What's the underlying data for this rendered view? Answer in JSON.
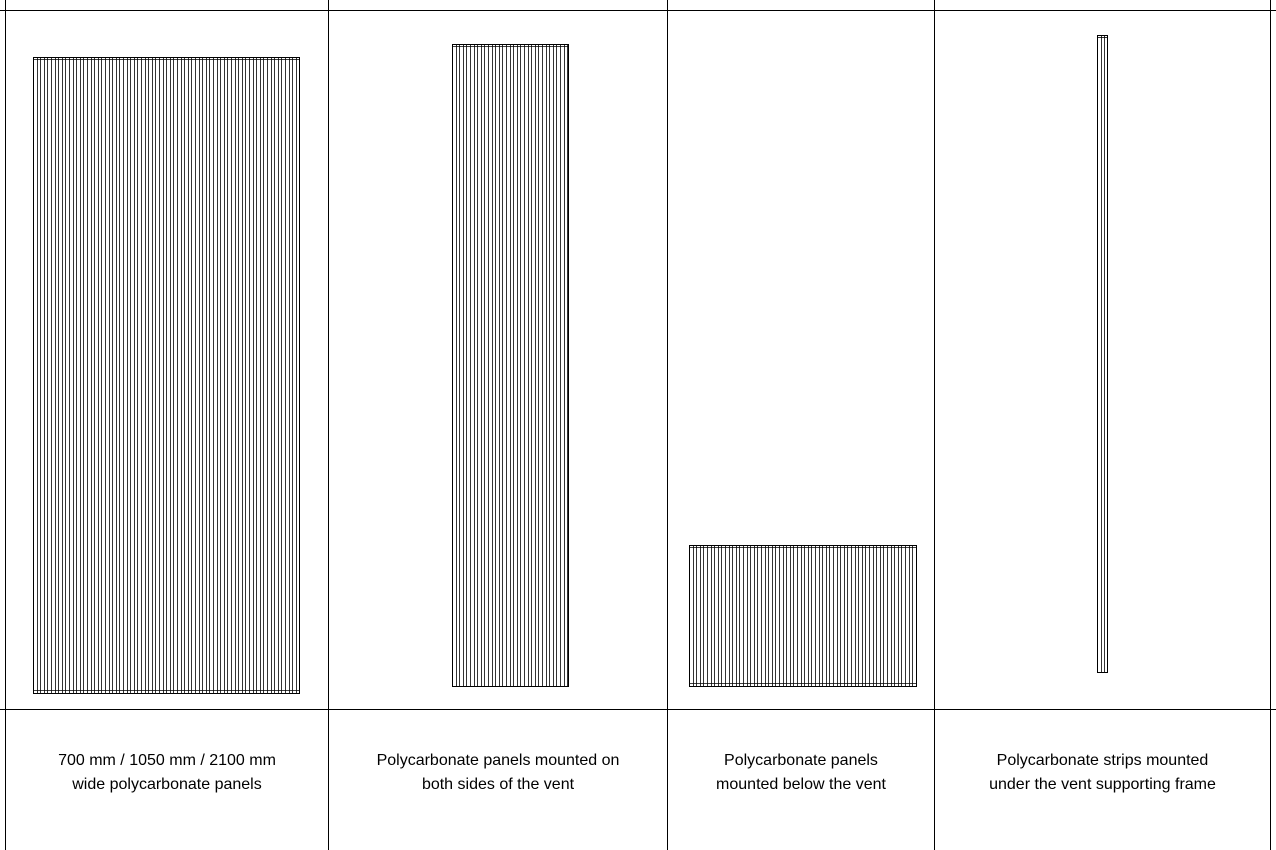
{
  "columns": [
    {
      "caption_line1": "700 mm / 1050 mm / 2100 mm",
      "caption_line2": "wide polycarbonate panels"
    },
    {
      "caption_line1": "Polycarbonate panels mounted on",
      "caption_line2": "both sides of the vent"
    },
    {
      "caption_line1": "Polycarbonate panels",
      "caption_line2": "mounted below the vent"
    },
    {
      "caption_line1": "Polycarbonate strips mounted",
      "caption_line2": "under the vent supporting frame"
    }
  ],
  "colors": {
    "line": "#000000",
    "background": "#ffffff"
  }
}
